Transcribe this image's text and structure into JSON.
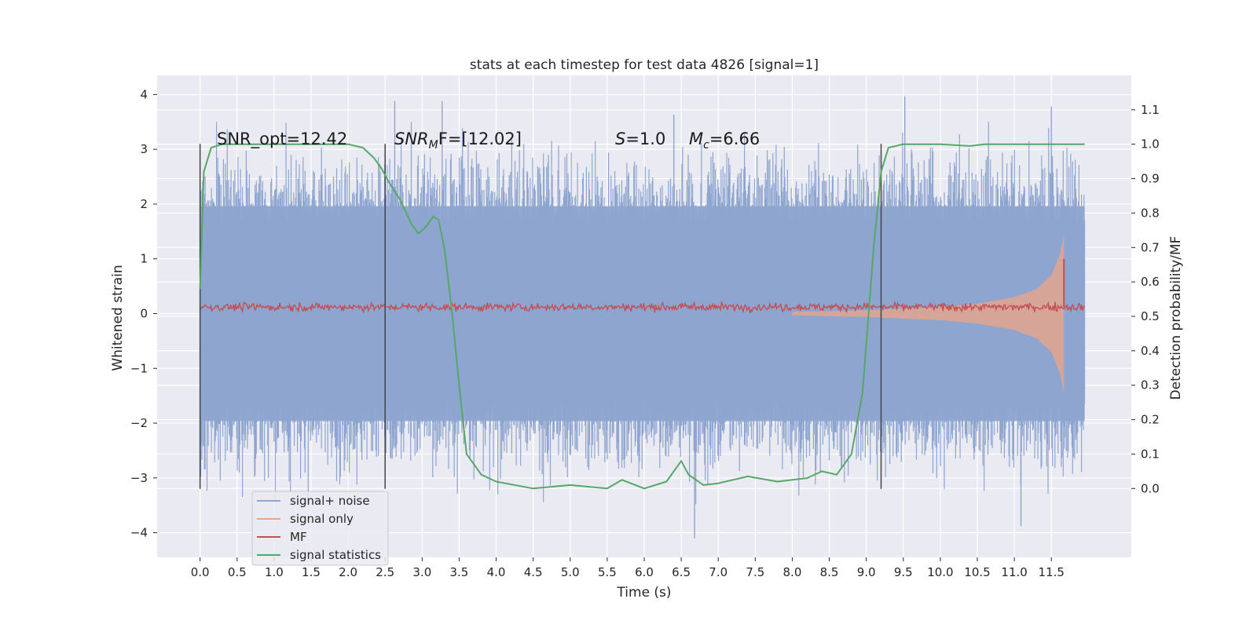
{
  "chart_data": {
    "type": "line",
    "title": "stats at each timestep for test data 4826 [signal=1]",
    "xlabel": "Time (s)",
    "ylabel": "Whitened strain",
    "ylabel_right": "Detection probability/MF",
    "xlim": [
      -0.58,
      12.58
    ],
    "ylim": [
      -4.45,
      4.35
    ],
    "ylim_right": [
      -0.2,
      1.2
    ],
    "x_ticks": [
      "0.0",
      "0.5",
      "1.0",
      "1.5",
      "2.0",
      "2.5",
      "3.0",
      "3.5",
      "4.0",
      "4.5",
      "5.0",
      "5.5",
      "6.0",
      "6.5",
      "7.0",
      "7.5",
      "8.0",
      "8.5",
      "9.0",
      "9.5",
      "10.0",
      "10.5",
      "11.0",
      "11.5"
    ],
    "y_ticks": [
      "4",
      "3",
      "2",
      "1",
      "0",
      "−1",
      "−2",
      "−3",
      "−4"
    ],
    "y_ticks_right": [
      "1.1",
      "1.0",
      "0.9",
      "0.8",
      "0.7",
      "0.6",
      "0.5",
      "0.4",
      "0.3",
      "0.2",
      "0.1",
      "0.0"
    ],
    "grid": true,
    "legend_position": "lower-left",
    "annotations": {
      "snr_opt": "SNR_opt=12.42",
      "snr_mf_sym": "SNR",
      "snr_mf_sub": "M",
      "snr_mf_rest": "F=[12.02]",
      "s_sym": "S",
      "s_rest": "=1.0",
      "mc_sym": "M",
      "mc_sub": "c",
      "mc_rest": "=6.66"
    },
    "vlines_x": [
      0.0,
      2.5,
      9.2
    ],
    "series": [
      {
        "name": "signal+ noise",
        "color": "#8ea5cf",
        "description_range": [
          -2.8,
          2.8
        ],
        "peak_points": [
          [
            2.63,
            3.88
          ],
          [
            3.27,
            3.88
          ],
          [
            9.52,
            3.97
          ],
          [
            11.5,
            3.78
          ],
          [
            6.4,
            3.63
          ],
          [
            6.68,
            -4.1
          ],
          [
            11.09,
            -3.88
          ]
        ]
      },
      {
        "name": "signal only",
        "color": "#e8a58a",
        "envelope_x": [
          8.0,
          9.0,
          10.0,
          10.5,
          11.0,
          11.3,
          11.5,
          11.62,
          11.67
        ],
        "envelope_y": [
          0.03,
          0.06,
          0.12,
          0.18,
          0.3,
          0.45,
          0.7,
          1.1,
          1.45
        ]
      },
      {
        "name": "MF",
        "color": "#c44e52",
        "level": 0.12,
        "spike_x": 11.67,
        "spike_y": 1.0
      },
      {
        "name": "signal statistics",
        "color": "#55a868",
        "x": [
          0.0,
          0.05,
          0.15,
          0.3,
          0.6,
          1.0,
          1.5,
          2.0,
          2.2,
          2.35,
          2.45,
          2.55,
          2.7,
          2.85,
          2.95,
          3.05,
          3.15,
          3.22,
          3.3,
          3.4,
          3.5,
          3.6,
          3.8,
          4.0,
          4.5,
          5.0,
          5.5,
          5.7,
          6.0,
          6.3,
          6.5,
          6.6,
          6.8,
          7.0,
          7.4,
          7.8,
          8.2,
          8.4,
          8.6,
          8.8,
          8.95,
          9.1,
          9.2,
          9.3,
          9.5,
          10.0,
          10.4,
          10.6,
          11.0,
          11.5,
          11.95
        ],
        "y": [
          0.58,
          0.92,
          0.99,
          1.0,
          1.0,
          1.0,
          1.0,
          1.0,
          0.99,
          0.96,
          0.93,
          0.89,
          0.84,
          0.77,
          0.74,
          0.76,
          0.79,
          0.78,
          0.7,
          0.52,
          0.3,
          0.1,
          0.04,
          0.02,
          0.0,
          0.01,
          0.0,
          0.025,
          0.0,
          0.02,
          0.08,
          0.04,
          0.01,
          0.015,
          0.035,
          0.02,
          0.03,
          0.05,
          0.04,
          0.1,
          0.28,
          0.7,
          0.92,
          0.99,
          1.0,
          1.0,
          0.995,
          1.0,
          1.0,
          1.0,
          1.0
        ]
      }
    ]
  }
}
